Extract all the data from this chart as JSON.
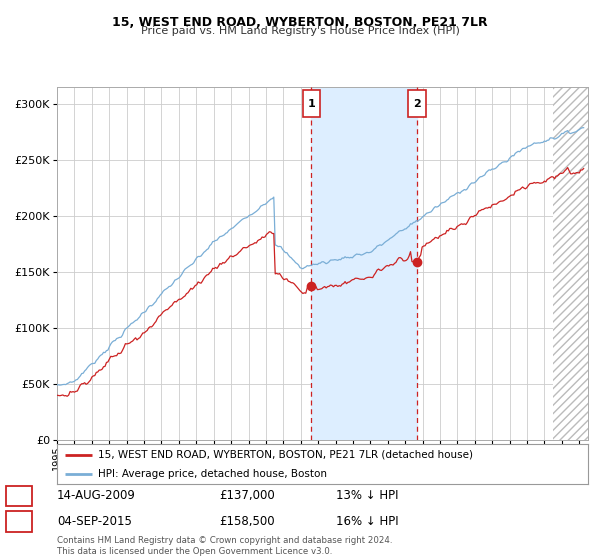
{
  "title1": "15, WEST END ROAD, WYBERTON, BOSTON, PE21 7LR",
  "title2": "Price paid vs. HM Land Registry's House Price Index (HPI)",
  "ytick_vals": [
    0,
    50000,
    100000,
    150000,
    200000,
    250000,
    300000
  ],
  "ytick_labels": [
    "£0",
    "£50K",
    "£100K",
    "£150K",
    "£200K",
    "£250K",
    "£300K"
  ],
  "ylim": [
    0,
    315000
  ],
  "xlim_start": 1995.0,
  "xlim_end": 2025.5,
  "sale1_date": 2009.617,
  "sale1_price": 137000,
  "sale2_date": 2015.672,
  "sale2_price": 158500,
  "legend_line1": "15, WEST END ROAD, WYBERTON, BOSTON, PE21 7LR (detached house)",
  "legend_line2": "HPI: Average price, detached house, Boston",
  "annotation1_date": "14-AUG-2009",
  "annotation1_price": "£137,000",
  "annotation1_hpi": "13% ↓ HPI",
  "annotation2_date": "04-SEP-2015",
  "annotation2_price": "£158,500",
  "annotation2_hpi": "16% ↓ HPI",
  "footnote": "Contains HM Land Registry data © Crown copyright and database right 2024.\nThis data is licensed under the Open Government Licence v3.0.",
  "hpi_color": "#7aaed6",
  "price_color": "#cc2222",
  "shade_color": "#ddeeff",
  "background_color": "#ffffff",
  "grid_color": "#cccccc",
  "hatch_start": 2023.5
}
